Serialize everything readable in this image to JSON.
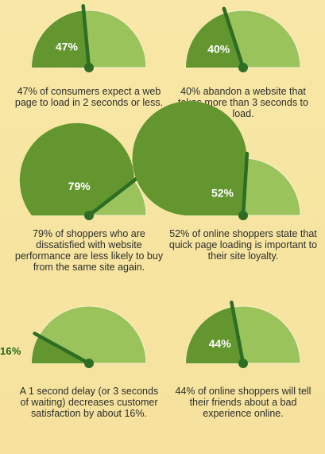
{
  "colors": {
    "background": "#f7e7a9",
    "gauge_light": "#9bc35c",
    "gauge_dark": "#63962f",
    "gauge_outline": "#f6f1cf",
    "needle": "#2d6d24",
    "text": "#2c2f2b",
    "value_text": "#ffffff",
    "outside_label": "#1f6a1e"
  },
  "gauges": [
    {
      "value": "47%",
      "fill_fraction": 0.47,
      "caption": "47% of consumers expect a web page to load in 2 seconds or less."
    },
    {
      "value": "40%",
      "fill_fraction": 0.4,
      "caption": "40% abandon a website that takes more than 3 seconds to load."
    },
    {
      "value": "79%",
      "fill_fraction": 0.79,
      "caption": "79% of shoppers who are dissatisfied with website performance are less likely to buy from the same site again."
    },
    {
      "value": "52%",
      "fill_fraction": 0.52,
      "caption": "52% of online shoppers state that quick page loading is important to their site loyalty."
    },
    {
      "value": "16%",
      "fill_fraction": 0.16,
      "caption": "A 1 second delay (or 3 seconds of waiting) decreases customer satisfaction by about 16%."
    },
    {
      "value": "44%",
      "fill_fraction": 0.44,
      "caption": "44% of online shoppers will tell their friends about a bad experience online."
    }
  ]
}
